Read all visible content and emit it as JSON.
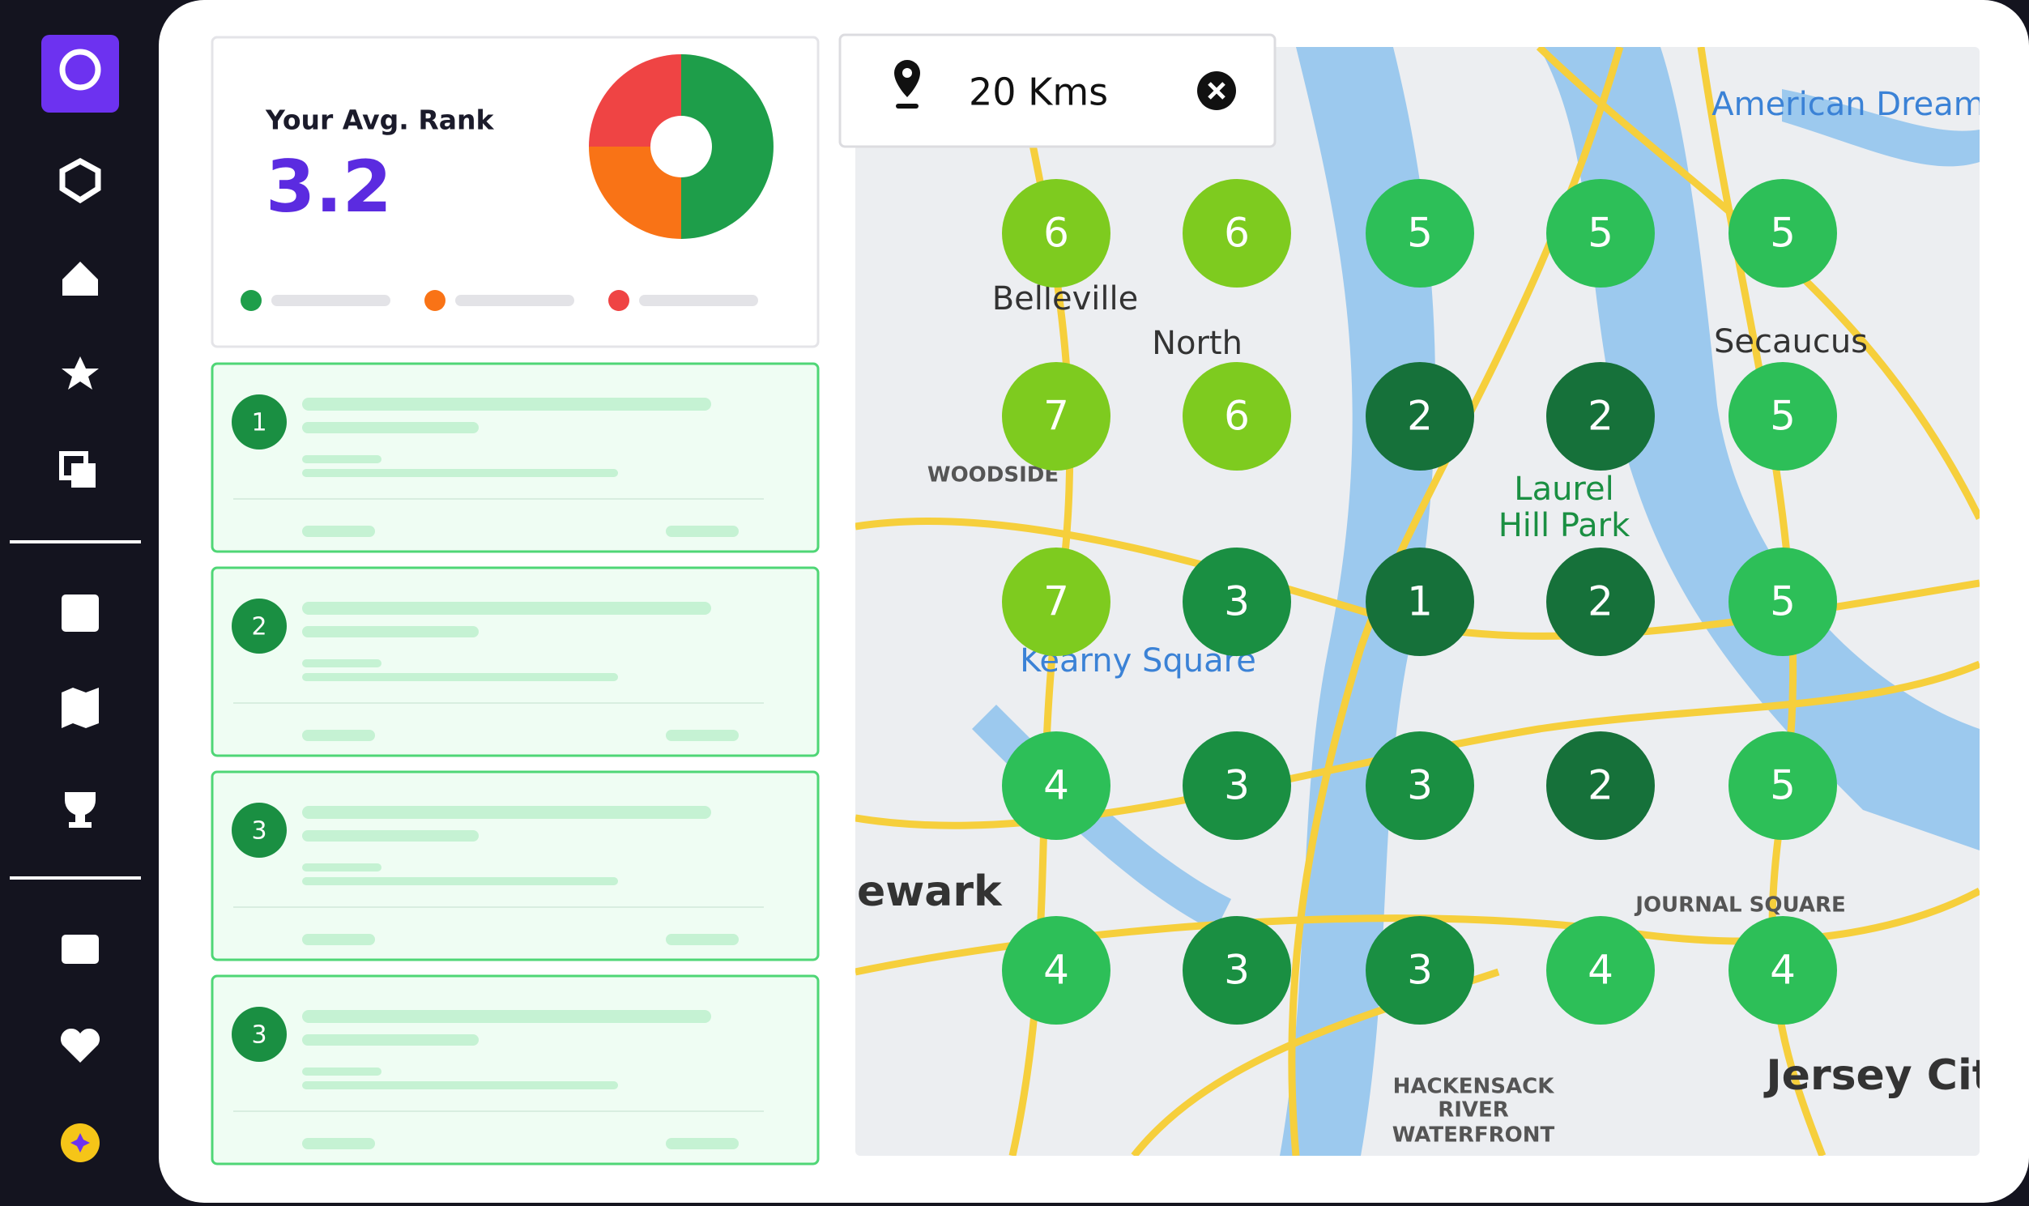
{
  "header": {
    "avg_rank_label": "Your Avg. Rank",
    "avg_rank": 3.2
  },
  "rank_distribution": {
    "values": [
      50,
      25,
      25
    ],
    "colors": [
      "#1e9e4a",
      "#f97316",
      "#ef4444"
    ]
  },
  "search": {
    "radius": "20 Kms"
  },
  "cards": [
    {
      "rank": 1
    },
    {
      "rank": 2
    },
    {
      "rank": 3
    },
    {
      "rank": 3
    }
  ],
  "grid": {
    "ranks": [
      [
        6,
        6,
        5,
        5,
        5
      ],
      [
        7,
        6,
        2,
        2,
        5
      ],
      [
        7,
        3,
        1,
        2,
        5
      ],
      [
        4,
        3,
        3,
        2,
        5
      ],
      [
        4,
        3,
        3,
        4,
        4
      ]
    ],
    "colors": {
      "1": "#16713a",
      "2": "#16713a",
      "3": "#1a8f42",
      "4": "#2dbf58",
      "5": "#2dbf58",
      "6": "#7ecb1f",
      "7": "#7ecb1f"
    }
  },
  "map_labels": [
    "Belleville",
    "North",
    "Secaucus",
    "Laurel",
    "Hill Park",
    "WOODSIDE",
    "Kearny Square",
    "ewark",
    "JOURNAL SQUARE",
    "Jersey Cit",
    "HACKENSACK",
    "RIVER",
    "WATERFRONT",
    "American Dream"
  ]
}
